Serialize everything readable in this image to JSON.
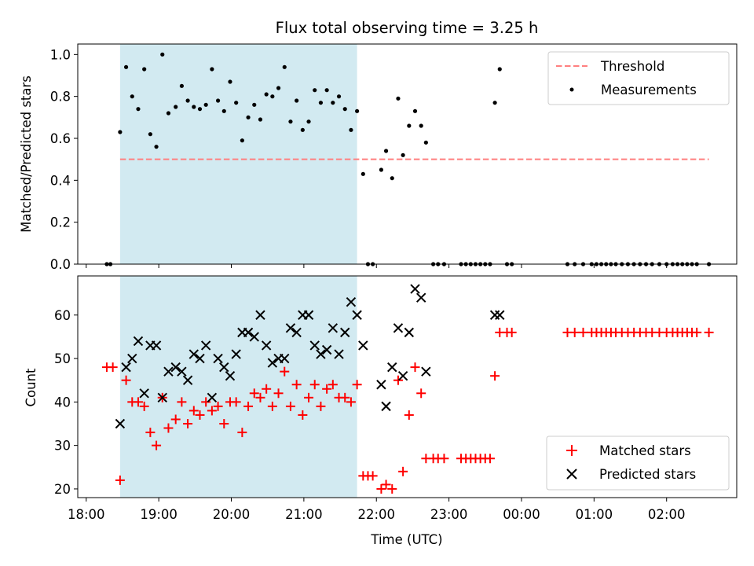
{
  "chart_data": [
    {
      "type": "scatter",
      "title": "Flux total observing time = 3.25 h",
      "xlabel": "",
      "ylabel": "Matched/Predicted stars",
      "xlim": [
        "17:53",
        "02:58"
      ],
      "ylim": [
        0,
        1.05
      ],
      "yticks": [
        "0.0",
        "0.2",
        "0.4",
        "0.6",
        "0.8",
        "1.0"
      ],
      "legend_position": "top-right",
      "shaded_interval": [
        "18:28",
        "21:44"
      ],
      "shade_color": "#add8e6",
      "threshold": {
        "name": "Threshold",
        "value": 0.5,
        "x_range": [
          "18:28",
          "02:35"
        ],
        "color": "#ff7f7f",
        "style": "dashed"
      },
      "series": [
        {
          "name": "Measurements",
          "marker": "dot",
          "color": "#000000",
          "points": [
            [
              "18:17",
              0.0
            ],
            [
              "18:20",
              0.0
            ],
            [
              "18:28",
              0.63
            ],
            [
              "18:33",
              0.94
            ],
            [
              "18:38",
              0.8
            ],
            [
              "18:43",
              0.74
            ],
            [
              "18:48",
              0.93
            ],
            [
              "18:53",
              0.62
            ],
            [
              "18:58",
              0.56
            ],
            [
              "19:03",
              1.0
            ],
            [
              "19:08",
              0.72
            ],
            [
              "19:14",
              0.75
            ],
            [
              "19:19",
              0.85
            ],
            [
              "19:24",
              0.78
            ],
            [
              "19:29",
              0.75
            ],
            [
              "19:34",
              0.74
            ],
            [
              "19:39",
              0.76
            ],
            [
              "19:44",
              0.93
            ],
            [
              "19:49",
              0.78
            ],
            [
              "19:54",
              0.73
            ],
            [
              "19:59",
              0.87
            ],
            [
              "20:04",
              0.77
            ],
            [
              "20:09",
              0.59
            ],
            [
              "20:14",
              0.7
            ],
            [
              "20:19",
              0.76
            ],
            [
              "20:24",
              0.69
            ],
            [
              "20:29",
              0.81
            ],
            [
              "20:34",
              0.8
            ],
            [
              "20:39",
              0.84
            ],
            [
              "20:44",
              0.94
            ],
            [
              "20:49",
              0.68
            ],
            [
              "20:54",
              0.78
            ],
            [
              "20:59",
              0.64
            ],
            [
              "21:04",
              0.68
            ],
            [
              "21:09",
              0.83
            ],
            [
              "21:14",
              0.77
            ],
            [
              "21:19",
              0.83
            ],
            [
              "21:24",
              0.77
            ],
            [
              "21:29",
              0.8
            ],
            [
              "21:34",
              0.74
            ],
            [
              "21:39",
              0.64
            ],
            [
              "21:44",
              0.73
            ],
            [
              "21:49",
              0.43
            ],
            [
              "21:53",
              0.0
            ],
            [
              "21:57",
              0.0
            ],
            [
              "22:04",
              0.45
            ],
            [
              "22:08",
              0.54
            ],
            [
              "22:13",
              0.41
            ],
            [
              "22:18",
              0.79
            ],
            [
              "22:22",
              0.52
            ],
            [
              "22:27",
              0.66
            ],
            [
              "22:32",
              0.73
            ],
            [
              "22:37",
              0.66
            ],
            [
              "22:41",
              0.58
            ],
            [
              "22:47",
              0.0
            ],
            [
              "22:51",
              0.0
            ],
            [
              "22:56",
              0.0
            ],
            [
              "23:10",
              0.0
            ],
            [
              "23:14",
              0.0
            ],
            [
              "23:18",
              0.0
            ],
            [
              "23:22",
              0.0
            ],
            [
              "23:26",
              0.0
            ],
            [
              "23:30",
              0.0
            ],
            [
              "23:34",
              0.0
            ],
            [
              "23:38",
              0.77
            ],
            [
              "23:42",
              0.93
            ],
            [
              "23:48",
              0.0
            ],
            [
              "23:52",
              0.0
            ],
            [
              "00:38",
              0.0
            ],
            [
              "00:44",
              0.0
            ],
            [
              "00:51",
              0.0
            ],
            [
              "00:58",
              0.0
            ],
            [
              "01:02",
              0.0
            ],
            [
              "01:06",
              0.0
            ],
            [
              "01:10",
              0.0
            ],
            [
              "01:14",
              0.0
            ],
            [
              "01:18",
              0.0
            ],
            [
              "01:23",
              0.0
            ],
            [
              "01:28",
              0.0
            ],
            [
              "01:33",
              0.0
            ],
            [
              "01:38",
              0.0
            ],
            [
              "01:43",
              0.0
            ],
            [
              "01:48",
              0.0
            ],
            [
              "01:54",
              0.0
            ],
            [
              "02:00",
              0.0
            ],
            [
              "02:05",
              0.0
            ],
            [
              "02:09",
              0.0
            ],
            [
              "02:13",
              0.0
            ],
            [
              "02:17",
              0.0
            ],
            [
              "02:21",
              0.0
            ],
            [
              "02:25",
              0.0
            ],
            [
              "02:35",
              0.0
            ]
          ]
        }
      ]
    },
    {
      "type": "scatter",
      "title": "",
      "xlabel": "Time (UTC)",
      "ylabel": "Count",
      "xlim": [
        "17:53",
        "02:58"
      ],
      "ylim": [
        18,
        69
      ],
      "yticks": [
        "20",
        "30",
        "40",
        "50",
        "60"
      ],
      "xticks": [
        "18:00",
        "19:00",
        "20:00",
        "21:00",
        "22:00",
        "23:00",
        "00:00",
        "01:00",
        "02:00"
      ],
      "legend_position": "bottom-right",
      "shaded_interval": [
        "18:28",
        "21:44"
      ],
      "shade_color": "#add8e6",
      "series": [
        {
          "name": "Matched stars",
          "marker": "plus",
          "color": "#ff0000",
          "points": [
            [
              "18:17",
              48
            ],
            [
              "18:22",
              48
            ],
            [
              "18:28",
              22
            ],
            [
              "18:33",
              45
            ],
            [
              "18:38",
              40
            ],
            [
              "18:43",
              40
            ],
            [
              "18:48",
              39
            ],
            [
              "18:53",
              33
            ],
            [
              "18:58",
              30
            ],
            [
              "19:03",
              41
            ],
            [
              "19:08",
              34
            ],
            [
              "19:14",
              36
            ],
            [
              "19:19",
              40
            ],
            [
              "19:24",
              35
            ],
            [
              "19:29",
              38
            ],
            [
              "19:34",
              37
            ],
            [
              "19:39",
              40
            ],
            [
              "19:44",
              38
            ],
            [
              "19:49",
              39
            ],
            [
              "19:54",
              35
            ],
            [
              "19:59",
              40
            ],
            [
              "20:04",
              40
            ],
            [
              "20:09",
              33
            ],
            [
              "20:14",
              39
            ],
            [
              "20:19",
              42
            ],
            [
              "20:24",
              41
            ],
            [
              "20:29",
              43
            ],
            [
              "20:34",
              39
            ],
            [
              "20:39",
              42
            ],
            [
              "20:44",
              47
            ],
            [
              "20:49",
              39
            ],
            [
              "20:54",
              44
            ],
            [
              "20:59",
              37
            ],
            [
              "21:04",
              41
            ],
            [
              "21:09",
              44
            ],
            [
              "21:14",
              39
            ],
            [
              "21:19",
              43
            ],
            [
              "21:24",
              44
            ],
            [
              "21:29",
              41
            ],
            [
              "21:34",
              41
            ],
            [
              "21:39",
              40
            ],
            [
              "21:44",
              44
            ],
            [
              "21:49",
              23
            ],
            [
              "21:53",
              23
            ],
            [
              "21:57",
              23
            ],
            [
              "22:04",
              20
            ],
            [
              "22:08",
              21
            ],
            [
              "22:13",
              20
            ],
            [
              "22:18",
              45
            ],
            [
              "22:22",
              24
            ],
            [
              "22:27",
              37
            ],
            [
              "22:32",
              48
            ],
            [
              "22:37",
              42
            ],
            [
              "22:41",
              27
            ],
            [
              "22:47",
              27
            ],
            [
              "22:51",
              27
            ],
            [
              "22:56",
              27
            ],
            [
              "23:10",
              27
            ],
            [
              "23:14",
              27
            ],
            [
              "23:18",
              27
            ],
            [
              "23:22",
              27
            ],
            [
              "23:26",
              27
            ],
            [
              "23:30",
              27
            ],
            [
              "23:34",
              27
            ],
            [
              "23:38",
              46
            ],
            [
              "23:42",
              56
            ],
            [
              "23:48",
              56
            ],
            [
              "23:52",
              56
            ],
            [
              "00:38",
              56
            ],
            [
              "00:44",
              56
            ],
            [
              "00:51",
              56
            ],
            [
              "00:58",
              56
            ],
            [
              "01:02",
              56
            ],
            [
              "01:06",
              56
            ],
            [
              "01:10",
              56
            ],
            [
              "01:14",
              56
            ],
            [
              "01:18",
              56
            ],
            [
              "01:23",
              56
            ],
            [
              "01:28",
              56
            ],
            [
              "01:33",
              56
            ],
            [
              "01:38",
              56
            ],
            [
              "01:43",
              56
            ],
            [
              "01:48",
              56
            ],
            [
              "01:54",
              56
            ],
            [
              "02:00",
              56
            ],
            [
              "02:05",
              56
            ],
            [
              "02:09",
              56
            ],
            [
              "02:13",
              56
            ],
            [
              "02:17",
              56
            ],
            [
              "02:21",
              56
            ],
            [
              "02:25",
              56
            ],
            [
              "02:35",
              56
            ]
          ]
        },
        {
          "name": "Predicted stars",
          "marker": "x",
          "color": "#000000",
          "points": [
            [
              "18:28",
              35
            ],
            [
              "18:33",
              48
            ],
            [
              "18:38",
              50
            ],
            [
              "18:43",
              54
            ],
            [
              "18:48",
              42
            ],
            [
              "18:53",
              53
            ],
            [
              "18:58",
              53
            ],
            [
              "19:03",
              41
            ],
            [
              "19:08",
              47
            ],
            [
              "19:14",
              48
            ],
            [
              "19:19",
              47
            ],
            [
              "19:24",
              45
            ],
            [
              "19:29",
              51
            ],
            [
              "19:34",
              50
            ],
            [
              "19:39",
              53
            ],
            [
              "19:44",
              41
            ],
            [
              "19:49",
              50
            ],
            [
              "19:54",
              48
            ],
            [
              "19:59",
              46
            ],
            [
              "20:04",
              51
            ],
            [
              "20:09",
              56
            ],
            [
              "20:14",
              56
            ],
            [
              "20:19",
              55
            ],
            [
              "20:24",
              60
            ],
            [
              "20:29",
              53
            ],
            [
              "20:34",
              49
            ],
            [
              "20:39",
              50
            ],
            [
              "20:44",
              50
            ],
            [
              "20:49",
              57
            ],
            [
              "20:54",
              56
            ],
            [
              "20:59",
              60
            ],
            [
              "21:04",
              60
            ],
            [
              "21:09",
              53
            ],
            [
              "21:14",
              51
            ],
            [
              "21:19",
              52
            ],
            [
              "21:24",
              57
            ],
            [
              "21:29",
              51
            ],
            [
              "21:34",
              56
            ],
            [
              "21:39",
              63
            ],
            [
              "21:44",
              60
            ],
            [
              "21:49",
              53
            ],
            [
              "22:04",
              44
            ],
            [
              "22:08",
              39
            ],
            [
              "22:13",
              48
            ],
            [
              "22:18",
              57
            ],
            [
              "22:22",
              46
            ],
            [
              "22:27",
              56
            ],
            [
              "22:32",
              66
            ],
            [
              "22:37",
              64
            ],
            [
              "22:41",
              47
            ],
            [
              "23:38",
              60
            ],
            [
              "23:42",
              60
            ]
          ]
        }
      ]
    }
  ]
}
